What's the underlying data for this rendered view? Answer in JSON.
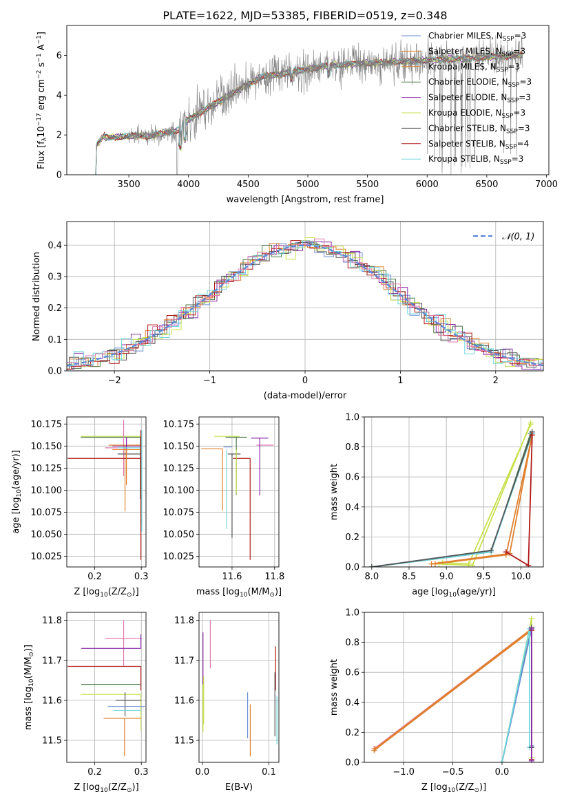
{
  "figure_title": "PLATE=1622, MJD=53385, FIBERID=0519, z=0.348",
  "colors": {
    "Chabrier MILES": "#6a8fd6",
    "Salpeter MILES": "#e0802e",
    "Kroupa MILES": "#e0802e",
    "Chabrier ELODIE": "#4d7a4d",
    "Salpeter ELODIE": "#8a2aa6",
    "Kroupa ELODIE": "#c8e04a",
    "Chabrier STELIB": "#555555",
    "Salpeter STELIB": "#b01818",
    "Kroupa STELIB": "#6fd6df",
    "pink": "#e07ab0",
    "gray_spec": "#808080"
  },
  "chart_data": [
    {
      "id": "spectrum",
      "type": "line",
      "title": "PLATE=1622, MJD=53385, FIBERID=0519, z=0.348",
      "xlabel": "wavelength [Angstrom, rest frame]",
      "ylabel_main": "Flux [f",
      "ylabel_sub": "λ",
      "ylabel_rest": "10",
      "ylabel_exp": "−17",
      "ylabel_units": " erg cm",
      "ylabel_units_exp": "−2",
      "ylabel_units2": " s",
      "ylabel_units2_exp": "−1",
      "ylabel_units3": " A",
      "ylabel_units3_exp": "−1",
      "ylabel_close": "]",
      "xlim": [
        2980,
        7020
      ],
      "ylim": [
        0,
        7.5
      ],
      "xticks": [
        3500,
        4000,
        4500,
        5000,
        5500,
        6000,
        6500,
        7000
      ],
      "yticks": [
        0,
        2,
        4,
        6
      ],
      "legend_placement": "upper right",
      "series": [
        {
          "name_main": "Chabrier MILES, N",
          "name_sub": "SSP",
          "name_end": "=3",
          "color": "#6a8fd6"
        },
        {
          "name_main": "Salpeter MILES, N",
          "name_sub": "SSP",
          "name_end": "=3",
          "color": "#e0802e"
        },
        {
          "name_main": "Kroupa MILES, N",
          "name_sub": "SSP",
          "name_end": "=3",
          "color": "#e0802e"
        },
        {
          "name_main": "Chabrier ELODIE, N",
          "name_sub": "SSP",
          "name_end": "=3",
          "color": "#4d7a4d"
        },
        {
          "name_main": "Salpeter ELODIE, N",
          "name_sub": "SSP",
          "name_end": "=3",
          "color": "#8a2aa6"
        },
        {
          "name_main": "Kroupa ELODIE, N",
          "name_sub": "SSP",
          "name_end": "=3",
          "color": "#c8e04a"
        },
        {
          "name_main": "Chabrier STELIB, N",
          "name_sub": "SSP",
          "name_end": "=3",
          "color": "#555555"
        },
        {
          "name_main": "Salpeter STELIB, N",
          "name_sub": "SSP",
          "name_end": "=4",
          "color": "#b01818"
        },
        {
          "name_main": "Kroupa STELIB, N",
          "name_sub": "SSP",
          "name_end": "=3",
          "color": "#6fd6df"
        }
      ]
    },
    {
      "id": "residuals",
      "type": "line",
      "xlabel": "(data-model)/error",
      "ylabel": "Normed distribution",
      "xlim": [
        -2.5,
        2.5
      ],
      "ylim": [
        0,
        0.475
      ],
      "xticks": [
        -2,
        -1,
        0,
        1,
        2
      ],
      "yticks": [
        0.0,
        0.1,
        0.2,
        0.3,
        0.4
      ],
      "grid": true,
      "legend_placement": "upper right",
      "legend_label": "𝒩(0, 1)",
      "gaussian": {
        "mu": 0,
        "sigma": 1,
        "color": "#5b86d6"
      }
    },
    {
      "id": "age_vs_Z",
      "type": "scatter",
      "xlabel_main": "Z [log",
      "xlabel_sub": "10",
      "xlabel_rest": "(Z/Z",
      "xlabel_sub2": "⊙",
      "xlabel_end": ")]",
      "ylabel_main": "age  [log",
      "ylabel_sub": "10",
      "ylabel_rest": "(age/yr)]",
      "xlim": [
        0.14,
        0.31
      ],
      "ylim": [
        10.013,
        10.183
      ],
      "xticks": [
        0.2,
        0.3
      ],
      "yticks": [
        10.025,
        10.05,
        10.075,
        10.1,
        10.125,
        10.15,
        10.175
      ],
      "grid": true,
      "points": [
        {
          "x": 0.298,
          "y": 10.161,
          "xerr": [
            0.128,
            0.0
          ],
          "yerr": [
            0.0,
            0.0
          ],
          "color": "#c8e04a"
        },
        {
          "x": 0.298,
          "y": 10.16,
          "xerr": [
            0.128,
            0.0
          ],
          "yerr": [
            0.07,
            0.0
          ],
          "color": "#4d7a4d"
        },
        {
          "x": 0.262,
          "y": 10.148,
          "xerr": [
            0.04,
            0.04
          ],
          "yerr": [
            0.032,
            0.032
          ],
          "color": "#e07ab0"
        },
        {
          "x": 0.265,
          "y": 10.151,
          "xerr": [
            0.035,
            0.035
          ],
          "yerr": [
            0.075,
            0.0
          ],
          "color": "#e0802e"
        },
        {
          "x": 0.268,
          "y": 10.15,
          "xerr": [
            0.03,
            0.03
          ],
          "yerr": [
            0.01,
            0.01
          ],
          "color": "#8a2aa6"
        },
        {
          "x": 0.27,
          "y": 10.148,
          "xerr": [
            0.02,
            0.03
          ],
          "yerr": [
            0.0,
            0.0
          ],
          "color": "#6fd6df"
        },
        {
          "x": 0.299,
          "y": 10.141,
          "xerr": [
            0.05,
            0.0
          ],
          "yerr": [
            0.08,
            0.027
          ],
          "color": "#555555"
        },
        {
          "x": 0.299,
          "y": 10.136,
          "xerr": [
            0.157,
            0.0
          ],
          "yerr": [
            0.115,
            0.032
          ],
          "color": "#b01818"
        },
        {
          "x": 0.268,
          "y": 10.146,
          "xerr": [
            0.03,
            0.03
          ],
          "yerr": [
            0.04,
            0.0
          ],
          "color": "#e0802e"
        },
        {
          "x": 0.301,
          "y": 10.118,
          "xerr": [
            0.0,
            0.0
          ],
          "yerr": [
            0.065,
            0.05
          ],
          "color": "#6fd6df"
        }
      ]
    },
    {
      "id": "age_vs_mass",
      "type": "scatter",
      "xlabel_main": "mass [log",
      "xlabel_sub": "10",
      "xlabel_rest": "(M/M",
      "xlabel_sub2": "⊙",
      "xlabel_end": ")]",
      "xlim": [
        11.445,
        11.82
      ],
      "ylim": [
        10.013,
        10.183
      ],
      "xticks": [
        11.6,
        11.8
      ],
      "yticks": [
        10.025,
        10.05,
        10.075,
        10.1,
        10.125,
        10.15,
        10.175
      ],
      "grid": true,
      "points": [
        {
          "x": 11.585,
          "y": 10.161,
          "xerr": [
            0.07,
            0.05
          ],
          "yerr": [
            0.0,
            0.0
          ],
          "color": "#c8e04a"
        },
        {
          "x": 11.62,
          "y": 10.16,
          "xerr": [
            0.05,
            0.05
          ],
          "yerr": [
            0.065,
            0.0
          ],
          "color": "#4d7a4d"
        },
        {
          "x": 11.755,
          "y": 10.151,
          "xerr": [
            0.04,
            0.04
          ],
          "yerr": [
            0.0,
            0.0
          ],
          "color": "#e07ab0"
        },
        {
          "x": 11.73,
          "y": 10.159,
          "xerr": [
            0.04,
            0.04
          ],
          "yerr": [
            0.065,
            0.0
          ],
          "color": "#8a2aa6"
        },
        {
          "x": 11.555,
          "y": 10.147,
          "xerr": [
            0.1,
            0.0
          ],
          "yerr": [
            0.07,
            0.0
          ],
          "color": "#e0802e"
        },
        {
          "x": 11.58,
          "y": 10.149,
          "xerr": [
            0.02,
            0.02
          ],
          "yerr": [
            0.0,
            0.0
          ],
          "color": "#6a8fd6"
        },
        {
          "x": 11.6,
          "y": 10.141,
          "xerr": [
            0.02,
            0.04
          ],
          "yerr": [
            0.095,
            0.0
          ],
          "color": "#555555"
        },
        {
          "x": 11.685,
          "y": 10.136,
          "xerr": [
            0.08,
            0.0
          ],
          "yerr": [
            0.115,
            0.0
          ],
          "color": "#b01818"
        },
        {
          "x": 11.62,
          "y": 10.146,
          "xerr": [
            0.0,
            0.0
          ],
          "yerr": [
            0.05,
            0.0
          ],
          "color": "#c8e04a"
        },
        {
          "x": 11.575,
          "y": 10.146,
          "xerr": [
            0.0,
            0.0
          ],
          "yerr": [
            0.09,
            0.0
          ],
          "color": "#6fd6df"
        }
      ]
    },
    {
      "id": "massweight_vs_age",
      "type": "line",
      "xlabel_main": "age  [log",
      "xlabel_sub": "10",
      "xlabel_rest": "(age/yr)]",
      "ylabel": "mass weight",
      "xlim": [
        7.9,
        10.3
      ],
      "ylim": [
        0,
        1.0
      ],
      "xticks": [
        8.0,
        8.5,
        9.0,
        9.5,
        10.0
      ],
      "yticks": [
        0.0,
        0.2,
        0.4,
        0.6,
        0.8,
        1.0
      ],
      "grid": true,
      "series": [
        {
          "color": "#c8e04a",
          "x": [
            8.9,
            9.35,
            10.13
          ],
          "y": [
            0.02,
            0.01,
            0.96
          ]
        },
        {
          "color": "#c8e04a",
          "x": [
            8.95,
            9.3,
            10.13
          ],
          "y": [
            0.03,
            0.02,
            0.95
          ]
        },
        {
          "color": "#4d7a4d",
          "x": [
            8.0,
            9.6,
            10.13
          ],
          "y": [
            0.0,
            0.1,
            0.89
          ]
        },
        {
          "color": "#6a8fd6",
          "x": [
            8.0,
            9.6,
            10.15
          ],
          "y": [
            0.0,
            0.11,
            0.89
          ]
        },
        {
          "color": "#6fd6df",
          "x": [
            8.0,
            9.6,
            10.15
          ],
          "y": [
            0.0,
            0.1,
            0.89
          ]
        },
        {
          "color": "#555555",
          "x": [
            8.0,
            9.6,
            10.15
          ],
          "y": [
            0.0,
            0.11,
            0.9
          ]
        },
        {
          "color": "#e0802e",
          "x": [
            8.8,
            9.85,
            10.15
          ],
          "y": [
            0.02,
            0.09,
            0.88
          ]
        },
        {
          "color": "#e0802e",
          "x": [
            8.85,
            9.8,
            10.15
          ],
          "y": [
            0.02,
            0.08,
            0.88
          ]
        },
        {
          "color": "#b01818",
          "x": [
            9.8,
            10.1,
            10.15
          ],
          "y": [
            0.1,
            0.01,
            0.88
          ]
        }
      ]
    },
    {
      "id": "mass_vs_Z",
      "type": "scatter",
      "xlabel_main": "Z [log",
      "xlabel_sub": "10",
      "xlabel_rest": "(Z/Z",
      "xlabel_sub2": "⊙",
      "xlabel_end": ")]",
      "ylabel_main": "mass [log",
      "ylabel_sub": "10",
      "ylabel_rest": "(M/M",
      "ylabel_sub2": "⊙",
      "ylabel_end": ")]",
      "xlim": [
        0.14,
        0.31
      ],
      "ylim": [
        11.445,
        11.82
      ],
      "xticks": [
        0.2,
        0.3
      ],
      "yticks": [
        11.5,
        11.6,
        11.7,
        11.8
      ],
      "grid": true,
      "points": [
        {
          "x": 0.262,
          "y": 11.755,
          "xerr": [
            0.04,
            0.04
          ],
          "yerr": [
            0.07,
            0.045
          ],
          "color": "#e07ab0"
        },
        {
          "x": 0.299,
          "y": 11.73,
          "xerr": [
            0.128,
            0.0
          ],
          "yerr": [
            0.0,
            0.035
          ],
          "color": "#8a2aa6"
        },
        {
          "x": 0.299,
          "y": 11.685,
          "xerr": [
            0.157,
            0.0
          ],
          "yerr": [
            0.06,
            0.0
          ],
          "color": "#b01818"
        },
        {
          "x": 0.299,
          "y": 11.64,
          "xerr": [
            0.128,
            0.0
          ],
          "yerr": [
            0.0,
            0.0
          ],
          "color": "#4d7a4d"
        },
        {
          "x": 0.299,
          "y": 11.615,
          "xerr": [
            0.128,
            0.0
          ],
          "yerr": [
            0.09,
            0.0
          ],
          "color": "#c8e04a"
        },
        {
          "x": 0.265,
          "y": 11.6,
          "xerr": [
            0.02,
            0.035
          ],
          "yerr": [
            0.04,
            0.02
          ],
          "color": "#555555"
        },
        {
          "x": 0.268,
          "y": 11.585,
          "xerr": [
            0.04,
            0.04
          ],
          "yerr": [
            0.0,
            0.0
          ],
          "color": "#6a8fd6"
        },
        {
          "x": 0.27,
          "y": 11.575,
          "xerr": [
            0.03,
            0.03
          ],
          "yerr": [
            0.0,
            0.0
          ],
          "color": "#6fd6df"
        },
        {
          "x": 0.264,
          "y": 11.555,
          "xerr": [
            0.045,
            0.035
          ],
          "yerr": [
            0.095,
            0.0
          ],
          "color": "#e0802e"
        }
      ]
    },
    {
      "id": "mass_vs_ebv",
      "type": "scatter",
      "xlabel": "E(B-V)",
      "xlim": [
        -0.005,
        0.115
      ],
      "ylim": [
        11.445,
        11.82
      ],
      "xticks": [
        0.0,
        0.1
      ],
      "yticks": [
        11.5,
        11.6,
        11.7,
        11.8
      ],
      "grid": true,
      "points": [
        {
          "x": 0.001,
          "y": 11.72,
          "xerr": [
            0,
            0
          ],
          "yerr": [
            0.08,
            0.05
          ],
          "color": "#8a2aa6"
        },
        {
          "x": 0.012,
          "y": 11.74,
          "xerr": [
            0,
            0
          ],
          "yerr": [
            0.06,
            0.06
          ],
          "color": "#e07ab0"
        },
        {
          "x": 0.002,
          "y": 11.6,
          "xerr": [
            0,
            0
          ],
          "yerr": [
            0.06,
            0.06
          ],
          "color": "#c8e04a"
        },
        {
          "x": 0.001,
          "y": 11.58,
          "xerr": [
            0,
            0
          ],
          "yerr": [
            0.06,
            0.06
          ],
          "color": "#c8e04a"
        },
        {
          "x": 0.068,
          "y": 11.565,
          "xerr": [
            0,
            0
          ],
          "yerr": [
            0.06,
            0.055
          ],
          "color": "#6a8fd6"
        },
        {
          "x": 0.072,
          "y": 11.53,
          "xerr": [
            0,
            0
          ],
          "yerr": [
            0.07,
            0.06
          ],
          "color": "#e0802e"
        },
        {
          "x": 0.11,
          "y": 11.685,
          "xerr": [
            0,
            0
          ],
          "yerr": [
            0.06,
            0.05
          ],
          "color": "#b01818"
        },
        {
          "x": 0.109,
          "y": 11.6,
          "xerr": [
            0,
            0
          ],
          "yerr": [
            0.09,
            0.07
          ],
          "color": "#555555"
        },
        {
          "x": 0.112,
          "y": 11.55,
          "xerr": [
            0,
            0
          ],
          "yerr": [
            0.06,
            0.06
          ],
          "color": "#6fd6df"
        }
      ]
    },
    {
      "id": "massweight_vs_Z",
      "type": "line",
      "xlabel_main": "Z [log",
      "xlabel_sub": "10",
      "xlabel_rest": "(Z/Z",
      "xlabel_sub2": "⊙",
      "xlabel_end": ")]",
      "ylabel": "mass weight",
      "xlim": [
        -1.4,
        0.42
      ],
      "ylim": [
        0,
        1.0
      ],
      "xticks": [
        -1.0,
        -0.5,
        0.0
      ],
      "yticks": [
        0.0,
        0.2,
        0.4,
        0.6,
        0.8,
        1.0
      ],
      "grid": true,
      "series": [
        {
          "color": "#e07ab0",
          "x": [
            -1.3,
            0.3
          ],
          "y": [
            0.09,
            0.89
          ]
        },
        {
          "color": "#e0802e",
          "x": [
            -1.3,
            0.3
          ],
          "y": [
            0.08,
            0.88
          ]
        },
        {
          "color": "#e0802e",
          "x": [
            -1.29,
            0.3
          ],
          "y": [
            0.09,
            0.89
          ]
        },
        {
          "color": "#c8e04a",
          "x": [
            0.0,
            0.3,
            0.3
          ],
          "y": [
            0.0,
            0.96,
            0.03
          ]
        },
        {
          "color": "#4d7a4d",
          "x": [
            0.0,
            0.3,
            0.3
          ],
          "y": [
            0.0,
            0.9,
            0.1
          ]
        },
        {
          "color": "#6a8fd6",
          "x": [
            0.0,
            0.3,
            0.3
          ],
          "y": [
            0.0,
            0.89,
            0.11
          ]
        },
        {
          "color": "#6fd6df",
          "x": [
            0.0,
            0.28,
            0.28
          ],
          "y": [
            0.0,
            0.89,
            0.1
          ]
        },
        {
          "color": "#555555",
          "x": [
            0.3,
            0.3
          ],
          "y": [
            0.9,
            0.1
          ]
        },
        {
          "color": "#b01818",
          "x": [
            0.3,
            0.3
          ],
          "y": [
            0.88,
            0.02
          ]
        },
        {
          "color": "#8a2aa6",
          "x": [
            0.3,
            0.3
          ],
          "y": [
            0.89,
            0.01
          ]
        }
      ]
    }
  ]
}
